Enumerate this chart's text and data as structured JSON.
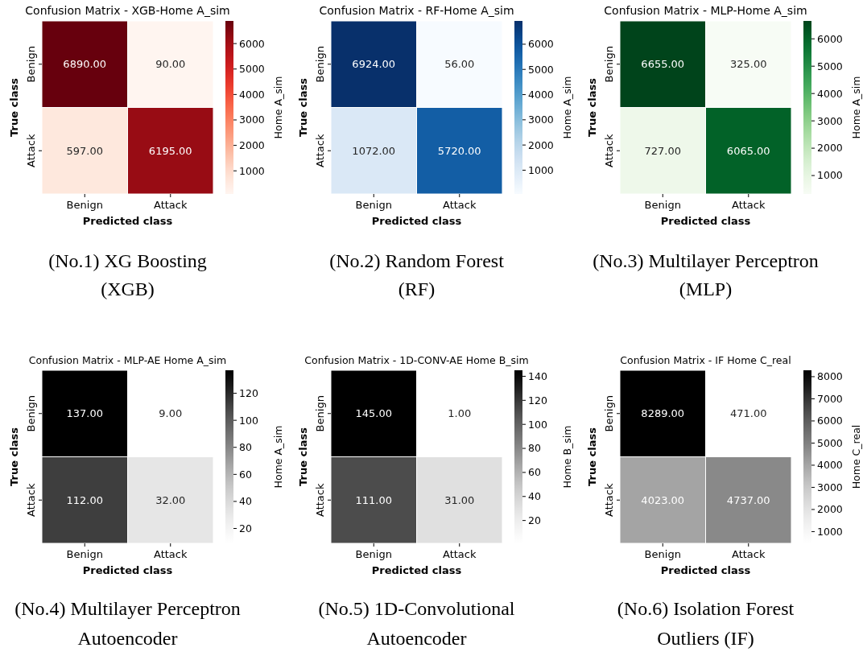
{
  "chart_data": [
    {
      "type": "heatmap",
      "title": "Confusion Matrix - XGB-Home A_sim",
      "xlabel": "Predicted class",
      "ylabel": "True class",
      "clabel": "Home A_sim",
      "categories": [
        "Benign",
        "Attack"
      ],
      "y_categories": [
        "Benign",
        "Attack"
      ],
      "cells": [
        [
          6890,
          90
        ],
        [
          597,
          6195
        ]
      ],
      "cell_labels": [
        [
          "6890.00",
          "90.00"
        ],
        [
          "597.00",
          "6195.00"
        ]
      ],
      "clim": [
        90,
        6890
      ],
      "cticks": [
        1000,
        2000,
        3000,
        4000,
        5000,
        6000
      ],
      "colors": [
        "#fff5f0",
        "#fee0d2",
        "#fcbba1",
        "#fc9272",
        "#fb6a4a",
        "#ef3b2c",
        "#cb181d",
        "#a50f15",
        "#67000d"
      ],
      "annotations": [
        "(No.1) XG Boosting",
        "(XGB)"
      ]
    },
    {
      "type": "heatmap",
      "title": "Confusion Matrix - RF-Home A_sim",
      "xlabel": "Predicted class",
      "ylabel": "True class",
      "clabel": "Home A_sim",
      "categories": [
        "Benign",
        "Attack"
      ],
      "y_categories": [
        "Benign",
        "Attack"
      ],
      "cells": [
        [
          6924,
          56
        ],
        [
          1072,
          5720
        ]
      ],
      "cell_labels": [
        [
          "6924.00",
          "56.00"
        ],
        [
          "1072.00",
          "5720.00"
        ]
      ],
      "clim": [
        56,
        6924
      ],
      "cticks": [
        1000,
        2000,
        3000,
        4000,
        5000,
        6000
      ],
      "colors": [
        "#f7fbff",
        "#deebf7",
        "#c6dbef",
        "#9ecae1",
        "#6baed6",
        "#4292c6",
        "#2171b5",
        "#08519c",
        "#08306b"
      ],
      "annotations": [
        "(No.2) Random Forest",
        "(RF)"
      ]
    },
    {
      "type": "heatmap",
      "title": "Confusion Matrix - MLP-Home A_sim",
      "xlabel": "Predicted class",
      "ylabel": "True class",
      "clabel": "Home A_sim",
      "categories": [
        "Benign",
        "Attack"
      ],
      "y_categories": [
        "Benign",
        "Attack"
      ],
      "cells": [
        [
          6655,
          325
        ],
        [
          727,
          6065
        ]
      ],
      "cell_labels": [
        [
          "6655.00",
          "325.00"
        ],
        [
          "727.00",
          "6065.00"
        ]
      ],
      "clim": [
        325,
        6655
      ],
      "cticks": [
        1000,
        2000,
        3000,
        4000,
        5000,
        6000
      ],
      "colors": [
        "#f7fcf5",
        "#e5f5e0",
        "#c7e9c0",
        "#a1d99b",
        "#74c476",
        "#41ab5d",
        "#238b45",
        "#006d2c",
        "#00441b"
      ],
      "annotations": [
        "(No.3) Multilayer Perceptron",
        "(MLP)"
      ]
    },
    {
      "type": "heatmap",
      "title": "Confusion Matrix - MLP-AE Home A_sim",
      "xlabel": "Predicted class",
      "ylabel": "True class",
      "clabel": "Home A_sim",
      "categories": [
        "Benign",
        "Attack"
      ],
      "y_categories": [
        "Benign",
        "Attack"
      ],
      "cells": [
        [
          137,
          9
        ],
        [
          112,
          32
        ]
      ],
      "cell_labels": [
        [
          "137.00",
          "9.00"
        ],
        [
          "112.00",
          "32.00"
        ]
      ],
      "clim": [
        9,
        137
      ],
      "cticks": [
        20,
        40,
        60,
        80,
        100,
        120
      ],
      "colors": [
        "#ffffff",
        "#f0f0f0",
        "#d9d9d9",
        "#bdbdbd",
        "#969696",
        "#737373",
        "#525252",
        "#252525",
        "#000000"
      ],
      "annotations": [
        "(No.4) Multilayer Perceptron",
        "Autoencoder"
      ]
    },
    {
      "type": "heatmap",
      "title": "Confusion Matrix - 1D-CONV-AE Home B_sim",
      "xlabel": "Predicted class",
      "ylabel": "True class",
      "clabel": "Home B_sim",
      "categories": [
        "Benign",
        "Attack"
      ],
      "y_categories": [
        "Benign",
        "Attack"
      ],
      "cells": [
        [
          145,
          1
        ],
        [
          111,
          31
        ]
      ],
      "cell_labels": [
        [
          "145.00",
          "1.00"
        ],
        [
          "111.00",
          "31.00"
        ]
      ],
      "clim": [
        1,
        145
      ],
      "cticks": [
        20,
        40,
        60,
        80,
        100,
        120,
        140
      ],
      "colors": [
        "#ffffff",
        "#f0f0f0",
        "#d9d9d9",
        "#bdbdbd",
        "#969696",
        "#737373",
        "#525252",
        "#252525",
        "#000000"
      ],
      "annotations": [
        "(No.5) 1D-Convolutional",
        "Autoencoder"
      ]
    },
    {
      "type": "heatmap",
      "title": "Confusion Matrix - IF Home C_real",
      "xlabel": "Predicted class",
      "ylabel": "True class",
      "clabel": "Home C_real",
      "categories": [
        "Benign",
        "Attack"
      ],
      "y_categories": [
        "Benign",
        "Attack"
      ],
      "cells": [
        [
          8289,
          471
        ],
        [
          4023,
          4737
        ]
      ],
      "cell_labels": [
        [
          "8289.00",
          "471.00"
        ],
        [
          "4023.00",
          "4737.00"
        ]
      ],
      "clim": [
        471,
        8289
      ],
      "cticks": [
        1000,
        2000,
        3000,
        4000,
        5000,
        6000,
        7000,
        8000
      ],
      "colors": [
        "#ffffff",
        "#f0f0f0",
        "#d9d9d9",
        "#bdbdbd",
        "#969696",
        "#737373",
        "#525252",
        "#252525",
        "#000000"
      ],
      "annotations": [
        "(No.6) Isolation Forest",
        "Outliers (IF)"
      ]
    }
  ]
}
